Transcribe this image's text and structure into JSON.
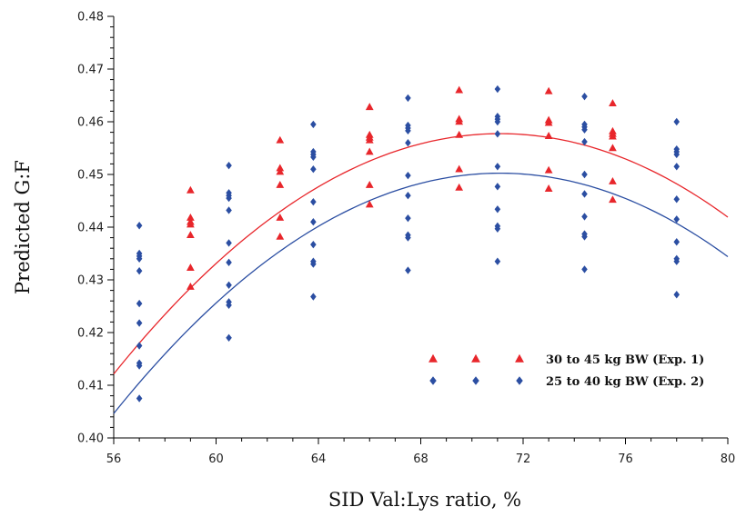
{
  "chart_data": {
    "type": "scatter",
    "title": "",
    "xlabel": "SID Val:Lys ratio, %",
    "ylabel": "Predicted G:F",
    "xlim": [
      56,
      80
    ],
    "ylim": [
      0.4,
      0.48
    ],
    "xticks": [
      56,
      60,
      64,
      68,
      72,
      76,
      80
    ],
    "yticks": [
      0.4,
      0.41,
      0.42,
      0.43,
      0.44,
      0.45,
      0.46,
      0.47,
      0.48
    ],
    "xtick_labels": [
      "56",
      "60",
      "64",
      "68",
      "72",
      "76",
      "80"
    ],
    "ytick_labels": [
      "0.40",
      "0.41",
      "0.42",
      "0.43",
      "0.44",
      "0.45",
      "0.46",
      "0.47",
      "0.48"
    ],
    "grid": false,
    "legend_position": "bottom-right",
    "series": [
      {
        "name": "30 to 45 kg BW (Exp. 1)",
        "color": "#e8262b",
        "marker": "triangle",
        "points": [
          [
            59,
            0.447
          ],
          [
            59,
            0.4418
          ],
          [
            59,
            0.441
          ],
          [
            59,
            0.4405
          ],
          [
            59,
            0.4385
          ],
          [
            59,
            0.4323
          ],
          [
            59,
            0.4287
          ],
          [
            62.5,
            0.4565
          ],
          [
            62.5,
            0.4512
          ],
          [
            62.5,
            0.4505
          ],
          [
            62.5,
            0.448
          ],
          [
            62.5,
            0.4418
          ],
          [
            62.5,
            0.4382
          ],
          [
            66,
            0.4628
          ],
          [
            66,
            0.4575
          ],
          [
            66,
            0.457
          ],
          [
            66,
            0.4565
          ],
          [
            66,
            0.4543
          ],
          [
            66,
            0.448
          ],
          [
            66,
            0.4443
          ],
          [
            69.5,
            0.466
          ],
          [
            69.5,
            0.4605
          ],
          [
            69.5,
            0.46
          ],
          [
            69.5,
            0.4575
          ],
          [
            69.5,
            0.451
          ],
          [
            69.5,
            0.4475
          ],
          [
            73,
            0.4658
          ],
          [
            73,
            0.4603
          ],
          [
            73,
            0.4598
          ],
          [
            73,
            0.4573
          ],
          [
            73,
            0.4508
          ],
          [
            73,
            0.4473
          ],
          [
            75.5,
            0.4635
          ],
          [
            75.5,
            0.4582
          ],
          [
            75.5,
            0.4577
          ],
          [
            75.5,
            0.4572
          ],
          [
            75.5,
            0.455
          ],
          [
            75.5,
            0.4487
          ],
          [
            75.5,
            0.4452
          ]
        ],
        "fit_line": {
          "a": -0.0002,
          "b": 0.02844,
          "c": -0.5533,
          "x_range": [
            56,
            80
          ]
        }
      },
      {
        "name": "25 to 40 kg BW (Exp. 2)",
        "color": "#2b4ea2",
        "marker": "diamond",
        "points": [
          [
            57,
            0.4403
          ],
          [
            57,
            0.435
          ],
          [
            57,
            0.4345
          ],
          [
            57,
            0.434
          ],
          [
            57,
            0.4317
          ],
          [
            57,
            0.4255
          ],
          [
            57,
            0.4218
          ],
          [
            57,
            0.4175
          ],
          [
            57,
            0.4142
          ],
          [
            57,
            0.4137
          ],
          [
            57,
            0.4075
          ],
          [
            60.5,
            0.4517
          ],
          [
            60.5,
            0.4465
          ],
          [
            60.5,
            0.446
          ],
          [
            60.5,
            0.4455
          ],
          [
            60.5,
            0.4432
          ],
          [
            60.5,
            0.437
          ],
          [
            60.5,
            0.4333
          ],
          [
            60.5,
            0.429
          ],
          [
            60.5,
            0.4258
          ],
          [
            60.5,
            0.4252
          ],
          [
            60.5,
            0.419
          ],
          [
            63.8,
            0.4595
          ],
          [
            63.8,
            0.4543
          ],
          [
            63.8,
            0.4538
          ],
          [
            63.8,
            0.4533
          ],
          [
            63.8,
            0.451
          ],
          [
            63.8,
            0.4448
          ],
          [
            63.8,
            0.441
          ],
          [
            63.8,
            0.4367
          ],
          [
            63.8,
            0.4335
          ],
          [
            63.8,
            0.433
          ],
          [
            63.8,
            0.4268
          ],
          [
            67.5,
            0.4645
          ],
          [
            67.5,
            0.4593
          ],
          [
            67.5,
            0.4588
          ],
          [
            67.5,
            0.4583
          ],
          [
            67.5,
            0.456
          ],
          [
            67.5,
            0.4498
          ],
          [
            67.5,
            0.446
          ],
          [
            67.5,
            0.4417
          ],
          [
            67.5,
            0.4385
          ],
          [
            67.5,
            0.438
          ],
          [
            67.5,
            0.4318
          ],
          [
            71,
            0.4662
          ],
          [
            71,
            0.461
          ],
          [
            71,
            0.4605
          ],
          [
            71,
            0.46
          ],
          [
            71,
            0.4577
          ],
          [
            71,
            0.4515
          ],
          [
            71,
            0.4477
          ],
          [
            71,
            0.4434
          ],
          [
            71,
            0.4402
          ],
          [
            71,
            0.4397
          ],
          [
            71,
            0.4335
          ],
          [
            74.4,
            0.4648
          ],
          [
            74.4,
            0.4595
          ],
          [
            74.4,
            0.459
          ],
          [
            74.4,
            0.4585
          ],
          [
            74.4,
            0.4562
          ],
          [
            74.4,
            0.45
          ],
          [
            74.4,
            0.4463
          ],
          [
            74.4,
            0.442
          ],
          [
            74.4,
            0.4387
          ],
          [
            74.4,
            0.4382
          ],
          [
            74.4,
            0.432
          ],
          [
            78,
            0.46
          ],
          [
            78,
            0.4548
          ],
          [
            78,
            0.4543
          ],
          [
            78,
            0.4538
          ],
          [
            78,
            0.4515
          ],
          [
            78,
            0.4453
          ],
          [
            78,
            0.4415
          ],
          [
            78,
            0.4372
          ],
          [
            78,
            0.434
          ],
          [
            78,
            0.4335
          ],
          [
            78,
            0.4272
          ]
        ],
        "fit_line": {
          "a": -0.0002,
          "b": 0.02844,
          "c": -0.5608,
          "x_range": [
            56,
            80
          ]
        }
      }
    ]
  }
}
